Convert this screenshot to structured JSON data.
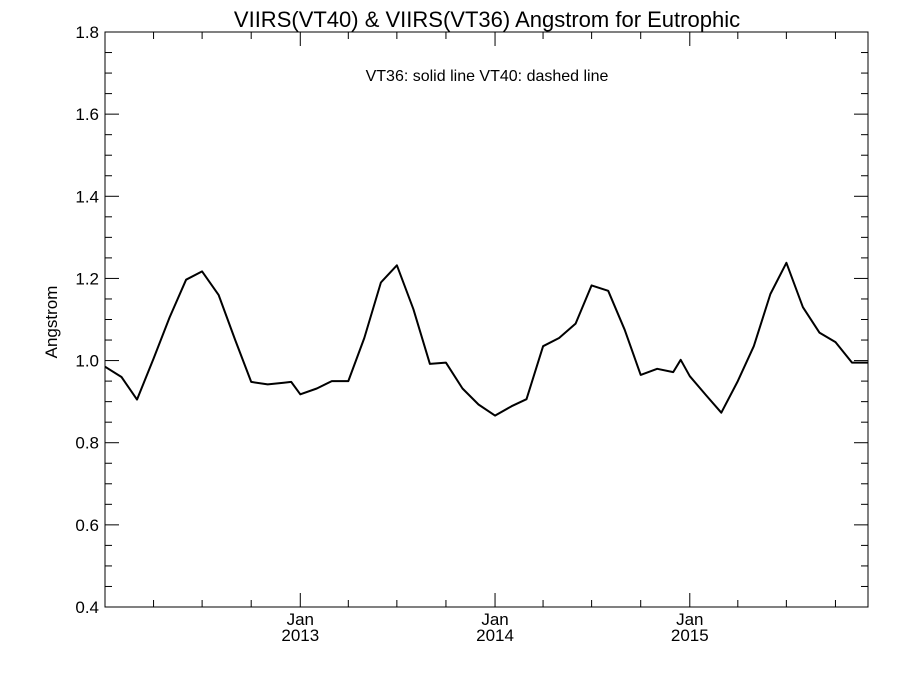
{
  "chart_data": {
    "type": "line",
    "title": "VIIRS(VT40) & VIIRS(VT36)  Angstrom for Eutrophic",
    "annotation": "VT36: solid line   VT40: dashed line",
    "xlabel": "",
    "ylabel": "Angstrom",
    "ylim": [
      0.4,
      1.8
    ],
    "yticks": [
      "0.4",
      "0.6",
      "0.8",
      "1.0",
      "1.2",
      "1.4",
      "1.6",
      "1.8"
    ],
    "xlim": [
      "2012-01-01",
      "2015-12-01"
    ],
    "xticks": [
      {
        "date": "2013-01-01",
        "month": "Jan",
        "year": "2013"
      },
      {
        "date": "2014-01-01",
        "month": "Jan",
        "year": "2014"
      },
      {
        "date": "2015-01-01",
        "month": "Jan",
        "year": "2015"
      }
    ],
    "grid": false,
    "line_color": "#000000",
    "series": [
      {
        "x": [
          "2012-01-01",
          "2012-02-01",
          "2012-03-01",
          "2012-04-01",
          "2012-05-01",
          "2012-06-01",
          "2012-07-01",
          "2012-08-01",
          "2012-09-01",
          "2012-10-01",
          "2012-11-01",
          "2012-12-01",
          "2012-12-15",
          "2013-01-01",
          "2013-02-01",
          "2013-03-01",
          "2013-04-01",
          "2013-05-01",
          "2013-06-01",
          "2013-07-01",
          "2013-08-01",
          "2013-09-01",
          "2013-10-01",
          "2013-11-01",
          "2013-12-01",
          "2014-01-01",
          "2014-02-01",
          "2014-03-01",
          "2014-04-01",
          "2014-05-01",
          "2014-06-01",
          "2014-07-01",
          "2014-08-01",
          "2014-09-01",
          "2014-10-01",
          "2014-11-01",
          "2014-12-01",
          "2014-12-15",
          "2015-01-01",
          "2015-02-01",
          "2015-03-01",
          "2015-04-01",
          "2015-05-01",
          "2015-06-01",
          "2015-07-01",
          "2015-08-01",
          "2015-09-01",
          "2015-10-01",
          "2015-11-01",
          "2015-12-01"
        ],
        "y": [
          0.985,
          0.96,
          0.905,
          1.005,
          1.105,
          1.197,
          1.217,
          1.16,
          1.05,
          0.948,
          0.942,
          0.946,
          0.948,
          0.918,
          0.932,
          0.95,
          0.95,
          1.055,
          1.19,
          1.232,
          1.125,
          0.992,
          0.995,
          0.932,
          0.893,
          0.866,
          0.889,
          0.906,
          1.035,
          1.055,
          1.09,
          1.183,
          1.17,
          1.075,
          0.965,
          0.98,
          0.972,
          1.002,
          0.962,
          0.915,
          0.873,
          0.95,
          1.035,
          1.162,
          1.238,
          1.13,
          1.068,
          1.045,
          0.995,
          0.995
        ]
      }
    ]
  }
}
